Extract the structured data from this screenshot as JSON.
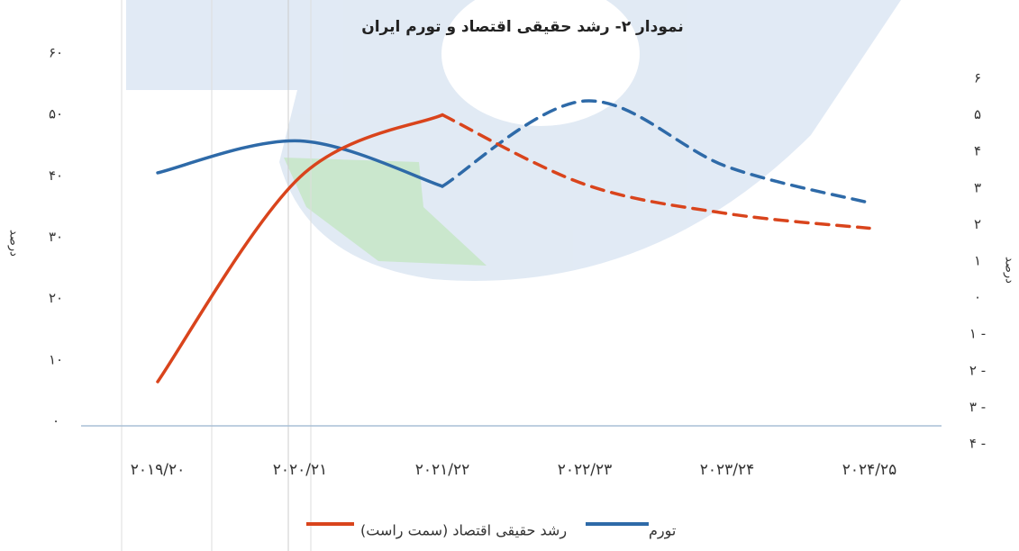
{
  "chart_data": {
    "type": "line",
    "title": "نمودار ۲- رشد حقیقی اقتصاد و تورم ایران",
    "ylabel": "درصد",
    "y2label": "درصد",
    "categories": [
      "۲۰۱۹/۲۰",
      "۲۰۲۰/۲۱",
      "۲۰۲۱/۲۲",
      "۲۰۲۲/۲۳",
      "۲۰۲۳/۲۴",
      "۲۰۲۴/۲۵"
    ],
    "dashed_from": 2,
    "series": [
      {
        "name": "تورم",
        "color": "#2e6aa8",
        "values": [
          40.5,
          45.7,
          38.3,
          52.2,
          41.5,
          35.6
        ]
      },
      {
        "name": "رشد حقیقی اقتصاد (سمت راست)",
        "color": "#d9441c",
        "axis": "y2",
        "values": [
          -2.3,
          3.3,
          5.0,
          3.1,
          2.3,
          1.9
        ]
      }
    ],
    "ylim": [
      0,
      60
    ],
    "yticks": [
      {
        "value": 0,
        "label": "۰"
      },
      {
        "value": 10,
        "label": "۱۰"
      },
      {
        "value": 20,
        "label": "۲۰"
      },
      {
        "value": 30,
        "label": "۳۰"
      },
      {
        "value": 40,
        "label": "۴۰"
      },
      {
        "value": 50,
        "label": "۵۰"
      },
      {
        "value": 60,
        "label": "۶۰"
      }
    ],
    "y2lim": [
      -4,
      6
    ],
    "y2ticks": [
      {
        "value": -4,
        "label": "۴ -"
      },
      {
        "value": -3,
        "label": "۳ -"
      },
      {
        "value": -2,
        "label": "۲ -"
      },
      {
        "value": -1,
        "label": "۱ -"
      },
      {
        "value": 0,
        "label": "۰"
      },
      {
        "value": 1,
        "label": "۱"
      },
      {
        "value": 2,
        "label": "۲"
      },
      {
        "value": 3,
        "label": "۳"
      },
      {
        "value": 4,
        "label": "۴"
      },
      {
        "value": 5,
        "label": "۵"
      },
      {
        "value": 6,
        "label": "۶"
      }
    ]
  }
}
